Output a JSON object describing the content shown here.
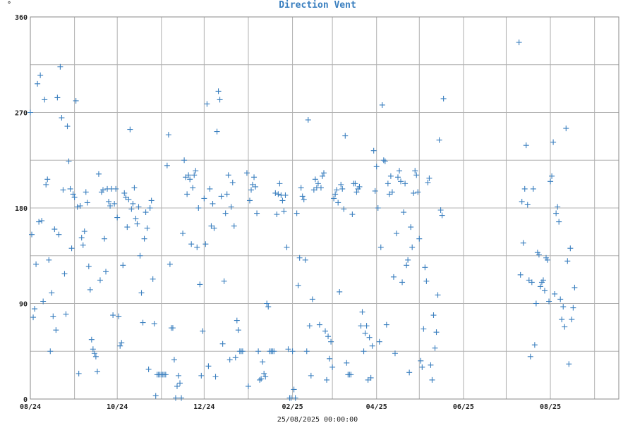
{
  "chart_data": {
    "type": "scatter",
    "title": "Direction Vent",
    "ylabel": "°",
    "xlabel": "25/08/2025 00:00:00",
    "marker": "+",
    "color": "#3a7fbf",
    "grid": true,
    "ylim": [
      0,
      360
    ],
    "yticks": [
      0,
      90,
      180,
      270,
      360
    ],
    "xlim": [
      "2024-08-01",
      "2025-09-18"
    ],
    "xticks": [
      {
        "date": "2024-08-01",
        "label": "08/24"
      },
      {
        "date": "2024-10-01",
        "label": "10/24"
      },
      {
        "date": "2024-12-01",
        "label": "12/24"
      },
      {
        "date": "2025-02-01",
        "label": "02/25"
      },
      {
        "date": "2025-04-01",
        "label": "04/25"
      },
      {
        "date": "2025-06-01",
        "label": "06/25"
      },
      {
        "date": "2025-08-01",
        "label": "08/25"
      }
    ],
    "points": [
      [
        "2024-08-01",
        270
      ],
      [
        "2024-08-02",
        155
      ],
      [
        "2024-08-03",
        77
      ],
      [
        "2024-08-04",
        85
      ],
      [
        "2024-08-05",
        127
      ],
      [
        "2024-08-06",
        297
      ],
      [
        "2024-08-07",
        167
      ],
      [
        "2024-08-08",
        305
      ],
      [
        "2024-08-09",
        168
      ],
      [
        "2024-08-10",
        92
      ],
      [
        "2024-08-11",
        282
      ],
      [
        "2024-08-12",
        202
      ],
      [
        "2024-08-13",
        207
      ],
      [
        "2024-08-14",
        131
      ],
      [
        "2024-08-15",
        45
      ],
      [
        "2024-08-16",
        100
      ],
      [
        "2024-08-17",
        78
      ],
      [
        "2024-08-18",
        160
      ],
      [
        "2024-08-19",
        65
      ],
      [
        "2024-08-20",
        284
      ],
      [
        "2024-08-21",
        155
      ],
      [
        "2024-08-22",
        313
      ],
      [
        "2024-08-23",
        265
      ],
      [
        "2024-08-24",
        197
      ],
      [
        "2024-08-25",
        118
      ],
      [
        "2024-08-26",
        80
      ],
      [
        "2024-08-27",
        257
      ],
      [
        "2024-08-28",
        224
      ],
      [
        "2024-08-29",
        198
      ],
      [
        "2024-08-30",
        142
      ],
      [
        "2024-08-31",
        193
      ],
      [
        "2024-09-01",
        190
      ],
      [
        "2024-09-02",
        281
      ],
      [
        "2024-09-03",
        181
      ],
      [
        "2024-09-04",
        24
      ],
      [
        "2024-09-05",
        182
      ],
      [
        "2024-09-06",
        152
      ],
      [
        "2024-09-07",
        145
      ],
      [
        "2024-09-08",
        158
      ],
      [
        "2024-09-09",
        195
      ],
      [
        "2024-09-10",
        185
      ],
      [
        "2024-09-11",
        125
      ],
      [
        "2024-09-12",
        103
      ],
      [
        "2024-09-13",
        56
      ],
      [
        "2024-09-14",
        47
      ],
      [
        "2024-09-15",
        43
      ],
      [
        "2024-09-16",
        40
      ],
      [
        "2024-09-17",
        26
      ],
      [
        "2024-09-18",
        212
      ],
      [
        "2024-09-19",
        112
      ],
      [
        "2024-09-20",
        195
      ],
      [
        "2024-09-21",
        197
      ],
      [
        "2024-09-22",
        151
      ],
      [
        "2024-09-23",
        120
      ],
      [
        "2024-09-24",
        198
      ],
      [
        "2024-09-25",
        186
      ],
      [
        "2024-09-26",
        182
      ],
      [
        "2024-09-27",
        198
      ],
      [
        "2024-09-28",
        79
      ],
      [
        "2024-09-29",
        184
      ],
      [
        "2024-09-30",
        198
      ],
      [
        "2024-10-01",
        171
      ],
      [
        "2024-10-02",
        78
      ],
      [
        "2024-10-03",
        50
      ],
      [
        "2024-10-04",
        53
      ],
      [
        "2024-10-05",
        126
      ],
      [
        "2024-10-06",
        194
      ],
      [
        "2024-10-07",
        190
      ],
      [
        "2024-10-08",
        162
      ],
      [
        "2024-10-09",
        188
      ],
      [
        "2024-10-10",
        254
      ],
      [
        "2024-10-11",
        179
      ],
      [
        "2024-10-12",
        184
      ],
      [
        "2024-10-13",
        199
      ],
      [
        "2024-10-14",
        170
      ],
      [
        "2024-10-15",
        165
      ],
      [
        "2024-10-16",
        181
      ],
      [
        "2024-10-17",
        135
      ],
      [
        "2024-10-18",
        100
      ],
      [
        "2024-10-19",
        72
      ],
      [
        "2024-10-20",
        151
      ],
      [
        "2024-10-21",
        176
      ],
      [
        "2024-10-22",
        161
      ],
      [
        "2024-10-23",
        28
      ],
      [
        "2024-10-24",
        180
      ],
      [
        "2024-10-25",
        187
      ],
      [
        "2024-10-26",
        113
      ],
      [
        "2024-10-27",
        71
      ],
      [
        "2024-10-28",
        3
      ],
      [
        "2024-10-29",
        23
      ],
      [
        "2024-10-30",
        23
      ],
      [
        "2024-10-31",
        23
      ],
      [
        "2024-11-01",
        23
      ],
      [
        "2024-11-02",
        23
      ],
      [
        "2024-11-03",
        23
      ],
      [
        "2024-11-04",
        23
      ],
      [
        "2024-11-05",
        220
      ],
      [
        "2024-11-06",
        249
      ],
      [
        "2024-11-07",
        127
      ],
      [
        "2024-11-08",
        67
      ],
      [
        "2024-11-09",
        67
      ],
      [
        "2024-11-10",
        37
      ],
      [
        "2024-11-11",
        1
      ],
      [
        "2024-11-12",
        12
      ],
      [
        "2024-11-13",
        22
      ],
      [
        "2024-11-14",
        15
      ],
      [
        "2024-11-15",
        1
      ],
      [
        "2024-11-16",
        156
      ],
      [
        "2024-11-17",
        225
      ],
      [
        "2024-11-18",
        209
      ],
      [
        "2024-11-19",
        193
      ],
      [
        "2024-11-20",
        211
      ],
      [
        "2024-11-21",
        207
      ],
      [
        "2024-11-22",
        146
      ],
      [
        "2024-11-23",
        199
      ],
      [
        "2024-11-24",
        211
      ],
      [
        "2024-11-25",
        215
      ],
      [
        "2024-11-26",
        143
      ],
      [
        "2024-11-27",
        180
      ],
      [
        "2024-11-28",
        108
      ],
      [
        "2024-11-29",
        22
      ],
      [
        "2024-11-30",
        64
      ],
      [
        "2024-12-01",
        189
      ],
      [
        "2024-12-02",
        146
      ],
      [
        "2024-12-03",
        278
      ],
      [
        "2024-12-04",
        31
      ],
      [
        "2024-12-05",
        198
      ],
      [
        "2024-12-06",
        163
      ],
      [
        "2024-12-07",
        184
      ],
      [
        "2024-12-08",
        161
      ],
      [
        "2024-12-09",
        21
      ],
      [
        "2024-12-10",
        252
      ],
      [
        "2024-12-11",
        290
      ],
      [
        "2024-12-12",
        282
      ],
      [
        "2024-12-13",
        191
      ],
      [
        "2024-12-14",
        52
      ],
      [
        "2024-12-15",
        111
      ],
      [
        "2024-12-16",
        175
      ],
      [
        "2024-12-17",
        193
      ],
      [
        "2024-12-18",
        211
      ],
      [
        "2024-12-19",
        37
      ],
      [
        "2024-12-20",
        181
      ],
      [
        "2024-12-21",
        204
      ],
      [
        "2024-12-22",
        163
      ],
      [
        "2024-12-23",
        39
      ],
      [
        "2024-12-24",
        74
      ],
      [
        "2024-12-25",
        65
      ],
      [
        "2024-12-26",
        45
      ],
      [
        "2024-12-27",
        45
      ],
      [
        "2024-12-28",
        45
      ],
      [
        "2024-12-31",
        213
      ],
      [
        "2025-01-01",
        12
      ],
      [
        "2025-01-02",
        187
      ],
      [
        "2025-01-03",
        197
      ],
      [
        "2025-01-04",
        202
      ],
      [
        "2025-01-05",
        209
      ],
      [
        "2025-01-06",
        200
      ],
      [
        "2025-01-07",
        175
      ],
      [
        "2025-01-08",
        45
      ],
      [
        "2025-01-09",
        18
      ],
      [
        "2025-01-10",
        19
      ],
      [
        "2025-01-11",
        35
      ],
      [
        "2025-01-12",
        24
      ],
      [
        "2025-01-13",
        21
      ],
      [
        "2025-01-14",
        90
      ],
      [
        "2025-01-15",
        87
      ],
      [
        "2025-01-16",
        45
      ],
      [
        "2025-01-17",
        45
      ],
      [
        "2025-01-18",
        45
      ],
      [
        "2025-01-19",
        45
      ],
      [
        "2025-01-20",
        194
      ],
      [
        "2025-01-21",
        174
      ],
      [
        "2025-01-22",
        193
      ],
      [
        "2025-01-23",
        203
      ],
      [
        "2025-01-24",
        192
      ],
      [
        "2025-01-25",
        187
      ],
      [
        "2025-01-26",
        177
      ],
      [
        "2025-01-27",
        192
      ],
      [
        "2025-01-28",
        143
      ],
      [
        "2025-01-29",
        47
      ],
      [
        "2025-01-30",
        1
      ],
      [
        "2025-01-31",
        1
      ],
      [
        "2025-02-01",
        45
      ],
      [
        "2025-02-02",
        9
      ],
      [
        "2025-02-03",
        1
      ],
      [
        "2025-02-04",
        175
      ],
      [
        "2025-02-05",
        107
      ],
      [
        "2025-02-06",
        133
      ],
      [
        "2025-02-07",
        199
      ],
      [
        "2025-02-08",
        191
      ],
      [
        "2025-02-09",
        188
      ],
      [
        "2025-02-10",
        131
      ],
      [
        "2025-02-11",
        45
      ],
      [
        "2025-02-12",
        263
      ],
      [
        "2025-02-13",
        69
      ],
      [
        "2025-02-14",
        22
      ],
      [
        "2025-02-15",
        94
      ],
      [
        "2025-02-16",
        197
      ],
      [
        "2025-02-17",
        207
      ],
      [
        "2025-02-18",
        199
      ],
      [
        "2025-02-19",
        203
      ],
      [
        "2025-02-20",
        70
      ],
      [
        "2025-02-21",
        199
      ],
      [
        "2025-02-22",
        210
      ],
      [
        "2025-02-23",
        213
      ],
      [
        "2025-02-24",
        64
      ],
      [
        "2025-02-25",
        18
      ],
      [
        "2025-02-26",
        59
      ],
      [
        "2025-02-27",
        38
      ],
      [
        "2025-02-28",
        54
      ],
      [
        "2025-03-01",
        30
      ],
      [
        "2025-03-02",
        189
      ],
      [
        "2025-03-03",
        193
      ],
      [
        "2025-03-04",
        197
      ],
      [
        "2025-03-05",
        185
      ],
      [
        "2025-03-06",
        101
      ],
      [
        "2025-03-07",
        202
      ],
      [
        "2025-03-08",
        198
      ],
      [
        "2025-03-09",
        179
      ],
      [
        "2025-03-10",
        248
      ],
      [
        "2025-03-11",
        34
      ],
      [
        "2025-03-12",
        23
      ],
      [
        "2025-03-13",
        23
      ],
      [
        "2025-03-14",
        23
      ],
      [
        "2025-03-15",
        174
      ],
      [
        "2025-03-16",
        203
      ],
      [
        "2025-03-17",
        203
      ],
      [
        "2025-03-18",
        195
      ],
      [
        "2025-03-19",
        198
      ],
      [
        "2025-03-20",
        200
      ],
      [
        "2025-03-21",
        69
      ],
      [
        "2025-03-22",
        82
      ],
      [
        "2025-03-23",
        45
      ],
      [
        "2025-03-24",
        62
      ],
      [
        "2025-03-25",
        69
      ],
      [
        "2025-03-26",
        18
      ],
      [
        "2025-03-27",
        58
      ],
      [
        "2025-03-28",
        20
      ],
      [
        "2025-03-29",
        50
      ],
      [
        "2025-03-30",
        234
      ],
      [
        "2025-03-31",
        196
      ],
      [
        "2025-04-01",
        219
      ],
      [
        "2025-04-02",
        180
      ],
      [
        "2025-04-03",
        54
      ],
      [
        "2025-04-04",
        143
      ],
      [
        "2025-04-05",
        277
      ],
      [
        "2025-04-06",
        225
      ],
      [
        "2025-04-07",
        224
      ],
      [
        "2025-04-08",
        70
      ],
      [
        "2025-04-09",
        203
      ],
      [
        "2025-04-10",
        193
      ],
      [
        "2025-04-11",
        210
      ],
      [
        "2025-04-12",
        195
      ],
      [
        "2025-04-13",
        115
      ],
      [
        "2025-04-14",
        43
      ],
      [
        "2025-04-15",
        156
      ],
      [
        "2025-04-16",
        209
      ],
      [
        "2025-04-17",
        215
      ],
      [
        "2025-04-18",
        205
      ],
      [
        "2025-04-19",
        110
      ],
      [
        "2025-04-20",
        176
      ],
      [
        "2025-04-21",
        203
      ],
      [
        "2025-04-22",
        126
      ],
      [
        "2025-04-23",
        131
      ],
      [
        "2025-04-24",
        25
      ],
      [
        "2025-04-25",
        162
      ],
      [
        "2025-04-26",
        143
      ],
      [
        "2025-04-27",
        194
      ],
      [
        "2025-04-28",
        215
      ],
      [
        "2025-04-29",
        211
      ],
      [
        "2025-04-30",
        195
      ],
      [
        "2025-05-01",
        151
      ],
      [
        "2025-05-02",
        36
      ],
      [
        "2025-05-03",
        30
      ],
      [
        "2025-05-04",
        66
      ],
      [
        "2025-05-05",
        124
      ],
      [
        "2025-05-06",
        111
      ],
      [
        "2025-05-07",
        204
      ],
      [
        "2025-05-08",
        208
      ],
      [
        "2025-05-09",
        32
      ],
      [
        "2025-05-10",
        18
      ],
      [
        "2025-05-11",
        79
      ],
      [
        "2025-05-12",
        48
      ],
      [
        "2025-05-13",
        63
      ],
      [
        "2025-05-14",
        98
      ],
      [
        "2025-05-15",
        244
      ],
      [
        "2025-05-16",
        178
      ],
      [
        "2025-05-17",
        173
      ],
      [
        "2025-05-18",
        283
      ],
      [
        "2025-07-10",
        336
      ],
      [
        "2025-07-11",
        117
      ],
      [
        "2025-07-12",
        186
      ],
      [
        "2025-07-13",
        147
      ],
      [
        "2025-07-14",
        198
      ],
      [
        "2025-07-15",
        239
      ],
      [
        "2025-07-16",
        183
      ],
      [
        "2025-07-17",
        112
      ],
      [
        "2025-07-18",
        40
      ],
      [
        "2025-07-19",
        110
      ],
      [
        "2025-07-20",
        198
      ],
      [
        "2025-07-21",
        51
      ],
      [
        "2025-07-22",
        90
      ],
      [
        "2025-07-23",
        138
      ],
      [
        "2025-07-24",
        136
      ],
      [
        "2025-07-25",
        106
      ],
      [
        "2025-07-26",
        110
      ],
      [
        "2025-07-27",
        112
      ],
      [
        "2025-07-28",
        102
      ],
      [
        "2025-07-29",
        133
      ],
      [
        "2025-07-30",
        131
      ],
      [
        "2025-07-31",
        92
      ],
      [
        "2025-08-01",
        205
      ],
      [
        "2025-08-02",
        210
      ],
      [
        "2025-08-03",
        242
      ],
      [
        "2025-08-04",
        99
      ],
      [
        "2025-08-05",
        175
      ],
      [
        "2025-08-06",
        181
      ],
      [
        "2025-08-07",
        167
      ],
      [
        "2025-08-08",
        94
      ],
      [
        "2025-08-09",
        75
      ],
      [
        "2025-08-10",
        87
      ],
      [
        "2025-08-11",
        68
      ],
      [
        "2025-08-12",
        255
      ],
      [
        "2025-08-13",
        130
      ],
      [
        "2025-08-14",
        33
      ],
      [
        "2025-08-15",
        142
      ],
      [
        "2025-08-16",
        75
      ],
      [
        "2025-08-17",
        86
      ],
      [
        "2025-08-18",
        105
      ]
    ]
  }
}
